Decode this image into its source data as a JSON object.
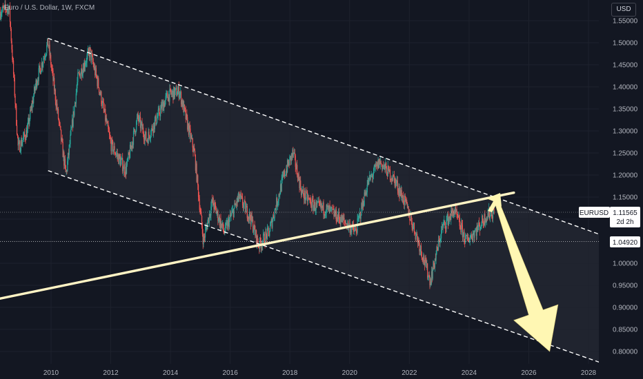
{
  "header": {
    "title": "Euro / U.S. Dollar, 1W, FXCM"
  },
  "price_axis": {
    "currency": "USD"
  },
  "symbol_label": {
    "symbol": "EURUSD",
    "price": "1.11565",
    "countdown": "2d 2h"
  },
  "level_label": {
    "price": "1.04920"
  },
  "colors": {
    "background": "#131722",
    "up": "#26a69a",
    "down": "#ef5350",
    "trendline": "#fff3c4",
    "arrow": "#fff7b3",
    "channel": "#ffffff"
  },
  "chart_data": {
    "type": "candlestick",
    "title": "Euro / U.S. Dollar, 1W, FXCM",
    "y_ticks": [
      "1.55000",
      "1.50000",
      "1.45000",
      "1.40000",
      "1.35000",
      "1.30000",
      "1.25000",
      "1.20000",
      "1.15000",
      "1.10000",
      "1.05000",
      "1.00000",
      "0.95000",
      "0.90000",
      "0.85000",
      "0.80000"
    ],
    "x_ticks": [
      "2010",
      "2012",
      "2014",
      "2016",
      "2018",
      "2020",
      "2022",
      "2024",
      "2026",
      "2028"
    ],
    "ylim": [
      0.78,
      1.58
    ],
    "xlim": [
      2008.3,
      2028.6
    ],
    "price_path": [
      [
        2008.3,
        1.57
      ],
      [
        2008.6,
        1.58
      ],
      [
        2008.9,
        1.26
      ],
      [
        2009.2,
        1.3
      ],
      [
        2009.5,
        1.41
      ],
      [
        2009.9,
        1.5
      ],
      [
        2010.5,
        1.2
      ],
      [
        2010.9,
        1.42
      ],
      [
        2011.3,
        1.48
      ],
      [
        2011.6,
        1.4
      ],
      [
        2012.0,
        1.27
      ],
      [
        2012.5,
        1.21
      ],
      [
        2012.9,
        1.33
      ],
      [
        2013.2,
        1.28
      ],
      [
        2013.9,
        1.38
      ],
      [
        2014.3,
        1.39
      ],
      [
        2014.8,
        1.25
      ],
      [
        2015.1,
        1.05
      ],
      [
        2015.4,
        1.14
      ],
      [
        2015.8,
        1.07
      ],
      [
        2016.3,
        1.15
      ],
      [
        2016.7,
        1.1
      ],
      [
        2016.95,
        1.04
      ],
      [
        2017.3,
        1.07
      ],
      [
        2017.8,
        1.2
      ],
      [
        2018.1,
        1.25
      ],
      [
        2018.4,
        1.16
      ],
      [
        2018.8,
        1.13
      ],
      [
        2019.3,
        1.12
      ],
      [
        2019.9,
        1.09
      ],
      [
        2020.2,
        1.07
      ],
      [
        2020.6,
        1.18
      ],
      [
        2021.0,
        1.23
      ],
      [
        2021.5,
        1.19
      ],
      [
        2021.9,
        1.13
      ],
      [
        2022.3,
        1.05
      ],
      [
        2022.7,
        0.96
      ],
      [
        2023.1,
        1.08
      ],
      [
        2023.5,
        1.12
      ],
      [
        2023.9,
        1.05
      ],
      [
        2024.3,
        1.08
      ],
      [
        2024.6,
        1.11
      ],
      [
        2024.85,
        1.11565
      ]
    ],
    "annotations": {
      "channel_upper": [
        [
          2009.9,
          1.51
        ],
        [
          2028.6,
          1.06
        ]
      ],
      "channel_lower": [
        [
          2009.9,
          1.21
        ],
        [
          2028.6,
          0.77
        ]
      ],
      "trendline": [
        [
          2008.3,
          0.92
        ],
        [
          2025.5,
          1.16
        ]
      ],
      "horizontal_level": 1.0492,
      "current_price": 1.11565,
      "arrow": [
        [
          2024.9,
          1.145
        ],
        [
          2026.7,
          0.8
        ]
      ]
    }
  }
}
